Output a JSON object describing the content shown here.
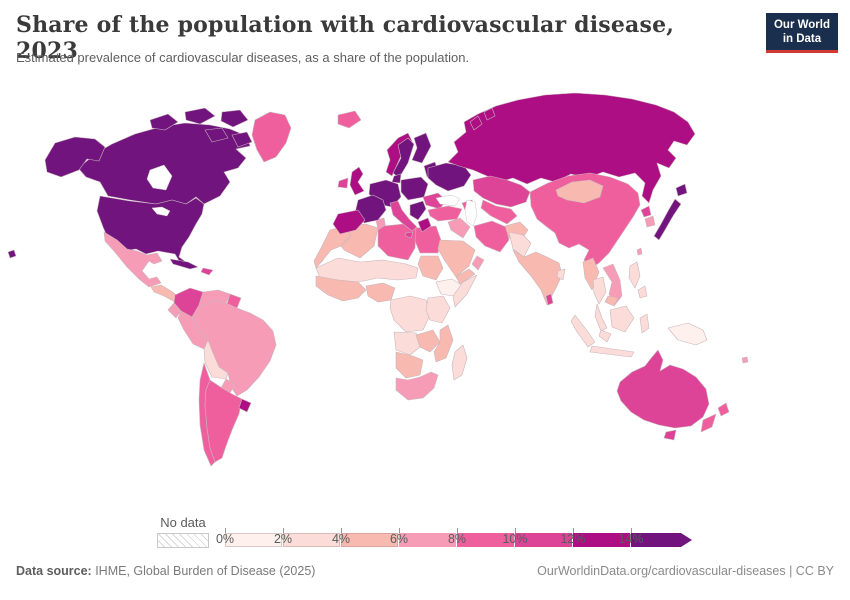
{
  "header": {
    "title": "Share of the population with cardiovascular disease, 2023",
    "subtitle": "Estimated prevalence of cardiovascular diseases, as a share of the population.",
    "logo_line1": "Our World",
    "logo_line2": "in Data",
    "logo_bg": "#1a2e4d",
    "logo_accent": "#cf3b32"
  },
  "legend": {
    "no_data_label": "No data",
    "tick_labels": [
      "0%",
      "2%",
      "4%",
      "6%",
      "8%",
      "10%",
      "12%",
      "14%"
    ]
  },
  "footer": {
    "source_label": "Data source:",
    "source_text": " IHME, Global Burden of Disease (2025)",
    "citation": "OurWorldinData.org/cardiovascular-diseases | CC BY"
  },
  "chart_data": {
    "type": "heatmap",
    "subtype": "world-choropleth",
    "title": "Share of the population with cardiovascular disease, 2023",
    "unit": "% of population",
    "bins": {
      "labels": [
        "0%",
        "2%",
        "4%",
        "6%",
        "8%",
        "10%",
        "12%",
        "14%"
      ],
      "open_ended_max": true,
      "colors": [
        "#fdf0ed",
        "#fbdcd8",
        "#f8b9b1",
        "#f79cb7",
        "#ef5f9e",
        "#dd4397",
        "#ad0e83",
        "#72147e"
      ],
      "no_data": "hatched"
    },
    "regions": [
      {
        "id": "canada",
        "bin": 7
      },
      {
        "id": "alaska",
        "bin": 7
      },
      {
        "id": "arctic1",
        "bin": 7
      },
      {
        "id": "arctic2",
        "bin": 7
      },
      {
        "id": "arctic3",
        "bin": 7
      },
      {
        "id": "arctic4",
        "bin": 7
      },
      {
        "id": "arctic5",
        "bin": 7
      },
      {
        "id": "greenland",
        "bin": 4
      },
      {
        "id": "usa",
        "bin": 7
      },
      {
        "id": "hawaii",
        "bin": 7
      },
      {
        "id": "mexico",
        "bin": 3
      },
      {
        "id": "central-america",
        "bin": 2
      },
      {
        "id": "cuba",
        "bin": 7
      },
      {
        "id": "hispaniola",
        "bin": 5
      },
      {
        "id": "colombia",
        "bin": 5
      },
      {
        "id": "venezuela",
        "bin": 3
      },
      {
        "id": "guyanas",
        "bin": 4
      },
      {
        "id": "ecuador",
        "bin": 3
      },
      {
        "id": "peru",
        "bin": 3
      },
      {
        "id": "brazil",
        "bin": 3
      },
      {
        "id": "bolivia",
        "bin": 1
      },
      {
        "id": "paraguay",
        "bin": 3
      },
      {
        "id": "chile",
        "bin": 4
      },
      {
        "id": "argentina",
        "bin": 4
      },
      {
        "id": "uruguay",
        "bin": 6
      },
      {
        "id": "morocco",
        "bin": 2
      },
      {
        "id": "algeria",
        "bin": 2
      },
      {
        "id": "tunisia",
        "bin": 3
      },
      {
        "id": "libya",
        "bin": 4
      },
      {
        "id": "egypt",
        "bin": 4
      },
      {
        "id": "sahel",
        "bin": 1
      },
      {
        "id": "west-africa",
        "bin": 2
      },
      {
        "id": "nigeria",
        "bin": 2
      },
      {
        "id": "sudan",
        "bin": 2
      },
      {
        "id": "ethiopia",
        "bin": 0
      },
      {
        "id": "somalia",
        "bin": 1
      },
      {
        "id": "central-africa",
        "bin": 1
      },
      {
        "id": "kenya-tanzania",
        "bin": 1
      },
      {
        "id": "angola",
        "bin": 1
      },
      {
        "id": "zambia-zimbabwe",
        "bin": 2
      },
      {
        "id": "mozambique",
        "bin": 2
      },
      {
        "id": "namibia-botswana",
        "bin": 2
      },
      {
        "id": "south-africa",
        "bin": 3
      },
      {
        "id": "madagascar",
        "bin": 1
      },
      {
        "id": "iceland",
        "bin": 4
      },
      {
        "id": "ireland",
        "bin": 5
      },
      {
        "id": "uk",
        "bin": 6
      },
      {
        "id": "norway",
        "bin": 6
      },
      {
        "id": "sweden",
        "bin": 7
      },
      {
        "id": "finland",
        "bin": 7
      },
      {
        "id": "denmark",
        "bin": 7
      },
      {
        "id": "baltics",
        "bin": 7
      },
      {
        "id": "germany-central-europe",
        "bin": 7
      },
      {
        "id": "poland",
        "bin": 7
      },
      {
        "id": "france",
        "bin": 7
      },
      {
        "id": "iberia",
        "bin": 6
      },
      {
        "id": "italy",
        "bin": 5
      },
      {
        "id": "sicily",
        "bin": 5
      },
      {
        "id": "balkans",
        "bin": 7
      },
      {
        "id": "greece",
        "bin": 6
      },
      {
        "id": "hungary-romania",
        "bin": 5
      },
      {
        "id": "ukraine-belarus",
        "bin": 7
      },
      {
        "id": "russia",
        "bin": 6
      },
      {
        "id": "novaya-zemlya1",
        "bin": 6
      },
      {
        "id": "novaya-zemlya2",
        "bin": 6
      },
      {
        "id": "kazakhstan",
        "bin": 5
      },
      {
        "id": "central-asia",
        "bin": 4
      },
      {
        "id": "caucasus",
        "bin": 4
      },
      {
        "id": "turkey",
        "bin": 4
      },
      {
        "id": "syria-iraq",
        "bin": 3
      },
      {
        "id": "saudi-arabia",
        "bin": 2
      },
      {
        "id": "yemen",
        "bin": 2
      },
      {
        "id": "oman",
        "bin": 3
      },
      {
        "id": "iran",
        "bin": 4
      },
      {
        "id": "afghanistan",
        "bin": 2
      },
      {
        "id": "pakistan",
        "bin": 1
      },
      {
        "id": "india",
        "bin": 2
      },
      {
        "id": "bangladesh",
        "bin": 1
      },
      {
        "id": "sri-lanka",
        "bin": 5
      },
      {
        "id": "china",
        "bin": 4
      },
      {
        "id": "mongolia",
        "bin": 2
      },
      {
        "id": "north-korea",
        "bin": 5
      },
      {
        "id": "south-korea",
        "bin": 3
      },
      {
        "id": "japan",
        "bin": 7
      },
      {
        "id": "hokkaido",
        "bin": 7
      },
      {
        "id": "taiwan",
        "bin": 3
      },
      {
        "id": "myanmar",
        "bin": 2
      },
      {
        "id": "thailand",
        "bin": 1
      },
      {
        "id": "thai-peninsula",
        "bin": 1
      },
      {
        "id": "vietnam-laos",
        "bin": 3
      },
      {
        "id": "cambodia",
        "bin": 2
      },
      {
        "id": "malaysia",
        "bin": 1
      },
      {
        "id": "sumatra",
        "bin": 1
      },
      {
        "id": "java",
        "bin": 1
      },
      {
        "id": "borneo",
        "bin": 1
      },
      {
        "id": "sulawesi",
        "bin": 1
      },
      {
        "id": "philippines-north",
        "bin": 1
      },
      {
        "id": "philippines-south",
        "bin": 1
      },
      {
        "id": "new-guinea",
        "bin": 0
      },
      {
        "id": "australia",
        "bin": 5
      },
      {
        "id": "tasmania",
        "bin": 5
      },
      {
        "id": "new-zealand-north",
        "bin": 4
      },
      {
        "id": "new-zealand-south",
        "bin": 4
      },
      {
        "id": "fiji",
        "bin": 3
      }
    ]
  }
}
